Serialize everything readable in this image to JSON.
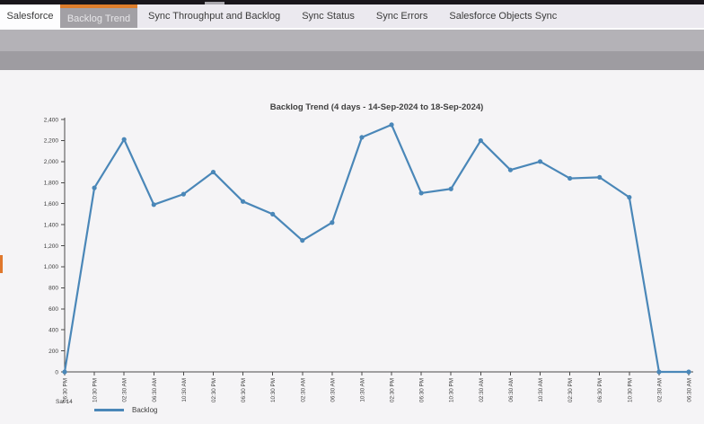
{
  "header": {
    "accent_color": "#dd7d2b",
    "tabs": [
      {
        "label": "Salesforce",
        "active": false
      },
      {
        "label": "Backlog Trend",
        "active": true
      },
      {
        "label": "Sync Throughput and Backlog",
        "active": false
      },
      {
        "label": "Sync Status",
        "active": false
      },
      {
        "label": "Sync Errors",
        "active": false
      },
      {
        "label": "Salesforce Objects Sync",
        "active": false
      }
    ]
  },
  "chart_data": {
    "type": "line",
    "title": "Backlog Trend (4 days - 14-Sep-2024 to 18-Sep-2024)",
    "series": [
      {
        "name": "Backlog",
        "color": "#4a87b8",
        "values": [
          0,
          1750,
          2210,
          1590,
          1690,
          1900,
          1620,
          1500,
          1250,
          1420,
          2230,
          2350,
          1700,
          1740,
          2200,
          1920,
          2000,
          1840,
          1850,
          1660,
          0,
          0
        ]
      }
    ],
    "x_labels": [
      "06:30 PM",
      "10:30 PM",
      "02:30 AM",
      "06:30 AM",
      "10:30 AM",
      "02:30 PM",
      "06:30 PM",
      "10:30 PM",
      "02:30 AM",
      "06:30 AM",
      "10:30 AM",
      "02:30 PM",
      "06:30 PM",
      "10:30 PM",
      "02:30 AM",
      "06:30 AM",
      "10:30 AM",
      "02:30 PM",
      "06:30 PM",
      "10:30 PM",
      "02:30 AM",
      "06:30 AM"
    ],
    "x_first_day_label": "Sat 14",
    "y_tick_values": [
      0,
      200,
      400,
      600,
      800,
      1000,
      1200,
      1400,
      1600,
      1800,
      2000,
      2200,
      2400
    ],
    "y_tick_labels": [
      "0",
      "200",
      "400",
      "600",
      "800",
      "1,000",
      "1,200",
      "1,400",
      "1,600",
      "1,800",
      "2,000",
      "2,200",
      "2,400"
    ],
    "ylim": [
      0,
      2400
    ],
    "grid": "off",
    "legend_position": "bottom-left",
    "marker": "circle"
  }
}
